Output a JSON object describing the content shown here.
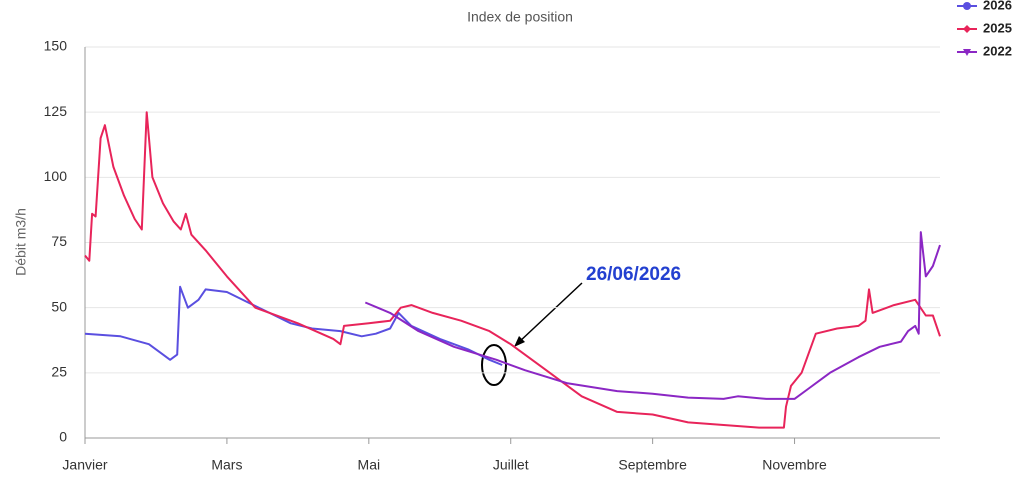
{
  "chart_data": {
    "type": "line",
    "subtitle": "Index de position",
    "y_label": "Débit  m3/h",
    "annotation": "26/06/2026",
    "xlim": [
      0,
      12.05
    ],
    "xticks": [
      {
        "value": 0,
        "label": "Janvier"
      },
      {
        "value": 2,
        "label": "Mars"
      },
      {
        "value": 4,
        "label": "Mai"
      },
      {
        "value": 6,
        "label": "Juillet"
      },
      {
        "value": 8,
        "label": "Septembre"
      },
      {
        "value": 10,
        "label": "Novembre"
      }
    ],
    "ylim": [
      0,
      150
    ],
    "yticks": [
      0,
      25,
      50,
      75,
      100,
      125,
      150
    ],
    "grid": true,
    "legend": "top-right",
    "series": [
      {
        "name": "2026",
        "color": "#5a4fe0",
        "marker": "circle",
        "x": [
          0,
          0.5,
          0.9,
          1.1,
          1.2,
          1.3,
          1.34,
          1.45,
          1.6,
          1.7,
          2.0,
          2.3,
          2.6,
          2.9,
          3.2,
          3.6,
          3.9,
          4.1,
          4.3,
          4.42,
          4.6,
          5.0,
          5.4,
          5.7,
          5.88
        ],
        "values": [
          40,
          39,
          36,
          32,
          30,
          32,
          58,
          50,
          53,
          57,
          56,
          52,
          48,
          44,
          42,
          41,
          39,
          40,
          42,
          48,
          43,
          38,
          34,
          30,
          28
        ]
      },
      {
        "name": "2025",
        "color": "#e8245a",
        "marker": "diamond",
        "x": [
          0,
          0.06,
          0.1,
          0.15,
          0.22,
          0.28,
          0.4,
          0.55,
          0.7,
          0.8,
          0.87,
          0.95,
          1.1,
          1.25,
          1.35,
          1.42,
          1.5,
          1.7,
          2.0,
          2.4,
          3.0,
          3.5,
          3.6,
          3.65,
          4.0,
          4.3,
          4.45,
          4.6,
          4.9,
          5.3,
          5.7,
          6.0,
          6.5,
          7.0,
          7.5,
          8.0,
          8.5,
          9.0,
          9.5,
          9.85,
          9.88,
          9.95,
          10.1,
          10.3,
          10.6,
          10.9,
          11.0,
          11.05,
          11.1,
          11.4,
          11.7,
          11.85,
          11.95,
          12.05
        ],
        "values": [
          70,
          68,
          86,
          85,
          115,
          120,
          104,
          93,
          84,
          80,
          125,
          100,
          90,
          83,
          80,
          86,
          78,
          72,
          62,
          50,
          44,
          38,
          36,
          43,
          44,
          45,
          50,
          51,
          48,
          45,
          41,
          36,
          26,
          16,
          10,
          9,
          6,
          5,
          4,
          4,
          12,
          20,
          25,
          40,
          42,
          43,
          45,
          57,
          48,
          51,
          53,
          47,
          47,
          39
        ]
      },
      {
        "name": "2022",
        "color": "#8b27c4",
        "marker": "triangle-down",
        "x": [
          3.95,
          4.3,
          4.7,
          5.2,
          5.8,
          6.2,
          6.8,
          7.5,
          8.0,
          8.5,
          9.0,
          9.2,
          9.6,
          10.0,
          10.2,
          10.5,
          10.9,
          11.2,
          11.5,
          11.6,
          11.7,
          11.75,
          11.78,
          11.85,
          11.95,
          12.05
        ],
        "values": [
          52,
          48,
          41,
          35,
          30,
          26,
          21,
          18,
          17,
          15.5,
          15,
          16,
          15,
          15,
          19,
          25,
          31,
          35,
          37,
          41,
          43,
          40,
          79,
          62,
          66,
          74
        ]
      }
    ]
  }
}
